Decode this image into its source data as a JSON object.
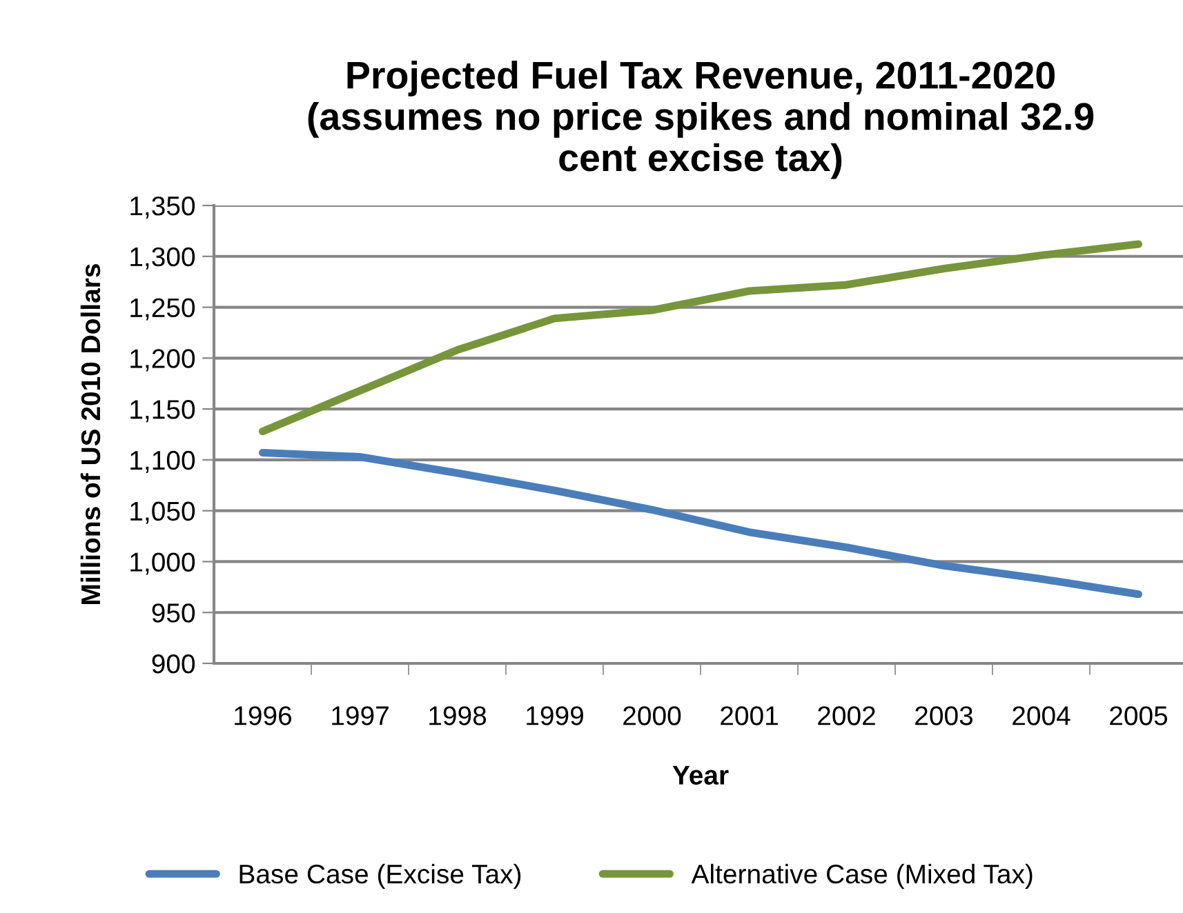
{
  "chart_data": {
    "type": "line",
    "title": "Projected Fuel Tax Revenue, 2011-2020\n(assumes no price spikes and nominal 32.9\ncent excise tax)",
    "xlabel": "Year",
    "ylabel": "Millions of US 2010 Dollars",
    "categories": [
      "1996",
      "1997",
      "1998",
      "1999",
      "2000",
      "2001",
      "2002",
      "2003",
      "2004",
      "2005"
    ],
    "series": [
      {
        "name": "Base Case (Excise Tax)",
        "color": "#4a7ebb",
        "values": [
          1107,
          1103,
          1087,
          1070,
          1051,
          1029,
          1014,
          996,
          983,
          968
        ]
      },
      {
        "name": "Alternative Case (Mixed Tax)",
        "color": "#77963c",
        "values": [
          1128,
          1168,
          1208,
          1239,
          1247,
          1266,
          1272,
          1288,
          1301,
          1312
        ]
      }
    ],
    "ylim": [
      900,
      1350
    ],
    "yticks": [
      {
        "value": 900,
        "label": "900"
      },
      {
        "value": 950,
        "label": "950"
      },
      {
        "value": 1000,
        "label": "1,000"
      },
      {
        "value": 1050,
        "label": "1,050"
      },
      {
        "value": 1100,
        "label": "1,100"
      },
      {
        "value": 1150,
        "label": "1,150"
      },
      {
        "value": 1200,
        "label": "1,200"
      },
      {
        "value": 1250,
        "label": "1,250"
      },
      {
        "value": 1300,
        "label": "1,300"
      },
      {
        "value": 1350,
        "label": "1,350"
      }
    ],
    "grid": "y",
    "legend": "bottom",
    "marker": "none",
    "line_style": "solid"
  }
}
